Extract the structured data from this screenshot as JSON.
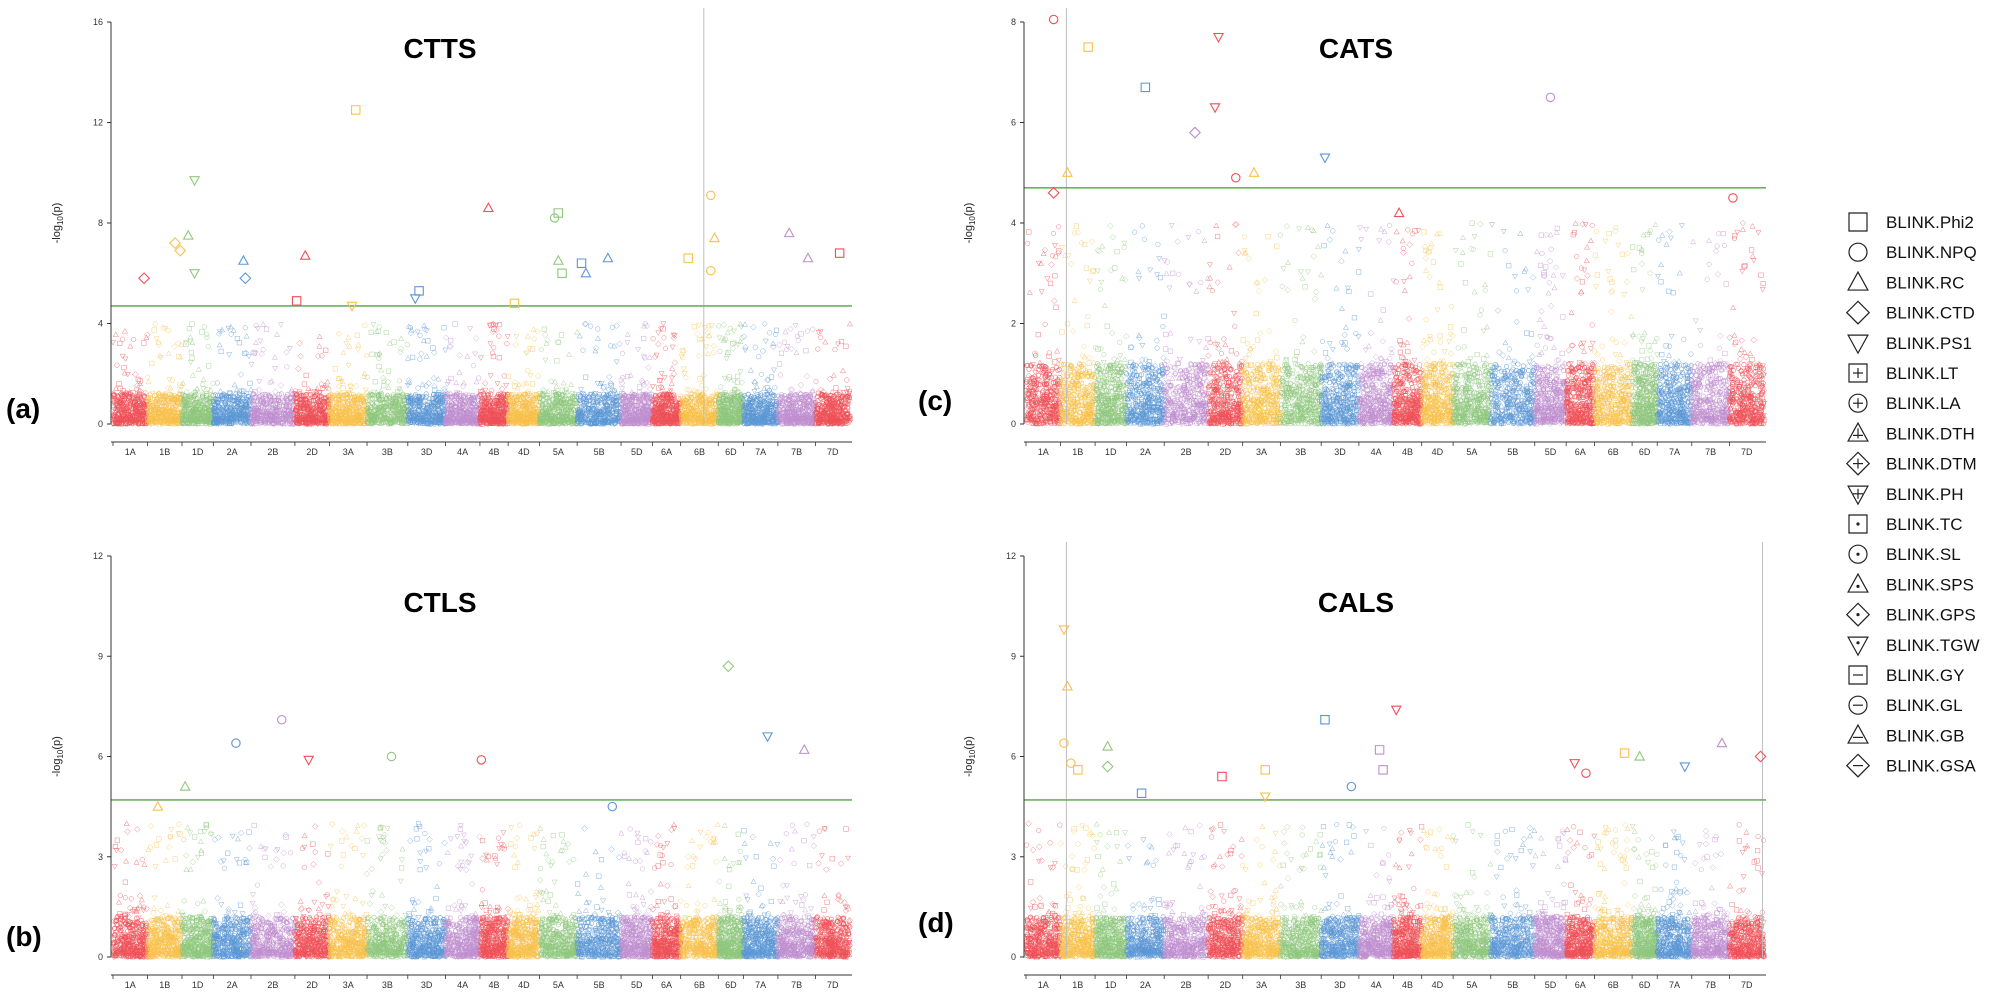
{
  "chart_data": [
    {
      "type": "scatter",
      "panel_label": "(a)",
      "title": "CTTS",
      "ylabel_prefix": "-log",
      "ylabel_sub": "10",
      "ylabel_suffix": "(p)",
      "ylim": [
        0,
        16
      ],
      "yticks": [
        0,
        4,
        8,
        12,
        16
      ],
      "threshold": 4.7,
      "chromosomes": [
        "1A",
        "1B",
        "1D",
        "2A",
        "2B",
        "2D",
        "3A",
        "3B",
        "3D",
        "4A",
        "4B",
        "4D",
        "5A",
        "5B",
        "5D",
        "6A",
        "6B",
        "6D",
        "7A",
        "7B",
        "7D"
      ],
      "vline_at": 16.8,
      "points": [
        {
          "chr": 2,
          "pos": 0.4,
          "y": 9.7,
          "shape": "tri_down"
        },
        {
          "chr": 2,
          "pos": 0.2,
          "y": 7.5,
          "shape": "triangle"
        },
        {
          "chr": 2,
          "pos": 0.4,
          "y": 6.0,
          "shape": "tri_down"
        },
        {
          "chr": 1,
          "pos": 0.8,
          "y": 7.2,
          "shape": "diamond"
        },
        {
          "chr": 1,
          "pos": 0.95,
          "y": 6.9,
          "shape": "diamond"
        },
        {
          "chr": 0,
          "pos": 0.9,
          "y": 5.8,
          "shape": "diamond"
        },
        {
          "chr": 3,
          "pos": 0.8,
          "y": 6.5,
          "shape": "triangle"
        },
        {
          "chr": 3,
          "pos": 0.85,
          "y": 5.8,
          "shape": "diamond"
        },
        {
          "chr": 5,
          "pos": 0.3,
          "y": 6.7,
          "shape": "triangle"
        },
        {
          "chr": 5,
          "pos": 0.05,
          "y": 4.9,
          "shape": "square"
        },
        {
          "chr": 6,
          "pos": 0.7,
          "y": 12.5,
          "shape": "square"
        },
        {
          "chr": 6,
          "pos": 0.6,
          "y": 4.7,
          "shape": "tri_down"
        },
        {
          "chr": 8,
          "pos": 0.2,
          "y": 5.0,
          "shape": "tri_down"
        },
        {
          "chr": 8,
          "pos": 0.3,
          "y": 5.3,
          "shape": "square"
        },
        {
          "chr": 10,
          "pos": 0.3,
          "y": 8.6,
          "shape": "triangle"
        },
        {
          "chr": 10,
          "pos": 0.3,
          "y": 4.8,
          "shape": "plus_tri"
        },
        {
          "chr": 11,
          "pos": 0.2,
          "y": 4.8,
          "shape": "square"
        },
        {
          "chr": 12,
          "pos": 0.5,
          "y": 8.4,
          "shape": "square"
        },
        {
          "chr": 12,
          "pos": 0.4,
          "y": 8.2,
          "shape": "circle"
        },
        {
          "chr": 12,
          "pos": 0.5,
          "y": 6.5,
          "shape": "triangle"
        },
        {
          "chr": 12,
          "pos": 0.6,
          "y": 6.0,
          "shape": "square"
        },
        {
          "chr": 13,
          "pos": 0.1,
          "y": 6.4,
          "shape": "square"
        },
        {
          "chr": 13,
          "pos": 0.2,
          "y": 6.0,
          "shape": "triangle"
        },
        {
          "chr": 13,
          "pos": 0.7,
          "y": 6.6,
          "shape": "triangle"
        },
        {
          "chr": 16,
          "pos": 0.2,
          "y": 6.6,
          "shape": "square"
        },
        {
          "chr": 16,
          "pos": 0.8,
          "y": 9.1,
          "shape": "circle"
        },
        {
          "chr": 16,
          "pos": 0.9,
          "y": 7.4,
          "shape": "triangle"
        },
        {
          "chr": 16,
          "pos": 0.8,
          "y": 6.1,
          "shape": "circle"
        },
        {
          "chr": 19,
          "pos": 0.3,
          "y": 7.6,
          "shape": "triangle"
        },
        {
          "chr": 19,
          "pos": 0.8,
          "y": 6.6,
          "shape": "triangle"
        },
        {
          "chr": 20,
          "pos": 0.7,
          "y": 6.8,
          "shape": "square"
        }
      ]
    },
    {
      "type": "scatter",
      "panel_label": "(c)",
      "title": "CATS",
      "ylabel_prefix": "-log",
      "ylabel_sub": "10",
      "ylabel_suffix": "(p)",
      "ylim": [
        0,
        8
      ],
      "yticks": [
        0,
        2,
        4,
        6,
        8
      ],
      "threshold": 4.7,
      "chromosomes": [
        "1A",
        "1B",
        "1D",
        "2A",
        "2B",
        "2D",
        "3A",
        "3B",
        "3D",
        "4A",
        "4B",
        "4D",
        "5A",
        "5B",
        "5D",
        "6A",
        "6B",
        "6D",
        "7A",
        "7B",
        "7D"
      ],
      "vline_at": 1.2,
      "points": [
        {
          "chr": 0,
          "pos": 0.8,
          "y": 4.6,
          "shape": "diamond"
        },
        {
          "chr": 1,
          "pos": 0.2,
          "y": 5.0,
          "shape": "triangle"
        },
        {
          "chr": 1,
          "pos": 0.8,
          "y": 7.5,
          "shape": "square"
        },
        {
          "chr": 0,
          "pos": 0.8,
          "y": 8.05,
          "shape": "circle"
        },
        {
          "chr": 3,
          "pos": 0.5,
          "y": 6.7,
          "shape": "square"
        },
        {
          "chr": 4,
          "pos": 0.7,
          "y": 5.8,
          "shape": "diamond"
        },
        {
          "chr": 5,
          "pos": 0.3,
          "y": 7.7,
          "shape": "tri_down"
        },
        {
          "chr": 5,
          "pos": 0.2,
          "y": 6.3,
          "shape": "tri_down"
        },
        {
          "chr": 5,
          "pos": 0.8,
          "y": 4.9,
          "shape": "circle"
        },
        {
          "chr": 6,
          "pos": 0.3,
          "y": 5.0,
          "shape": "triangle"
        },
        {
          "chr": 8,
          "pos": 0.1,
          "y": 5.3,
          "shape": "tri_down"
        },
        {
          "chr": 10,
          "pos": 0.2,
          "y": 4.2,
          "shape": "triangle"
        },
        {
          "chr": 14,
          "pos": 0.5,
          "y": 6.5,
          "shape": "circle"
        },
        {
          "chr": 20,
          "pos": 0.1,
          "y": 4.5,
          "shape": "circle"
        }
      ]
    },
    {
      "type": "scatter",
      "panel_label": "(b)",
      "title": "CTLS",
      "ylabel_prefix": "-log",
      "ylabel_sub": "10",
      "ylabel_suffix": "(p)",
      "ylim": [
        0,
        12
      ],
      "yticks": [
        0,
        3,
        6,
        9,
        12
      ],
      "threshold": 4.7,
      "chromosomes": [
        "1A",
        "1B",
        "1D",
        "2A",
        "2B",
        "2D",
        "3A",
        "3B",
        "3D",
        "4A",
        "4B",
        "4D",
        "5A",
        "5B",
        "5D",
        "6A",
        "6B",
        "6D",
        "7A",
        "7B",
        "7D"
      ],
      "vline_at": null,
      "points": [
        {
          "chr": 1,
          "pos": 0.3,
          "y": 4.5,
          "shape": "triangle"
        },
        {
          "chr": 2,
          "pos": 0.1,
          "y": 5.1,
          "shape": "triangle"
        },
        {
          "chr": 3,
          "pos": 0.6,
          "y": 6.4,
          "shape": "circle"
        },
        {
          "chr": 4,
          "pos": 0.7,
          "y": 7.1,
          "shape": "circle"
        },
        {
          "chr": 5,
          "pos": 0.4,
          "y": 5.9,
          "shape": "tri_down"
        },
        {
          "chr": 7,
          "pos": 0.6,
          "y": 6.0,
          "shape": "circle"
        },
        {
          "chr": 10,
          "pos": 0.05,
          "y": 5.9,
          "shape": "circle"
        },
        {
          "chr": 13,
          "pos": 0.8,
          "y": 4.5,
          "shape": "circle"
        },
        {
          "chr": 17,
          "pos": 0.4,
          "y": 8.7,
          "shape": "diamond"
        },
        {
          "chr": 18,
          "pos": 0.7,
          "y": 6.6,
          "shape": "tri_down"
        },
        {
          "chr": 19,
          "pos": 0.7,
          "y": 6.2,
          "shape": "triangle"
        }
      ]
    },
    {
      "type": "scatter",
      "panel_label": "(d)",
      "title": "CALS",
      "ylabel_prefix": "-log",
      "ylabel_sub": "10",
      "ylabel_suffix": "(p)",
      "ylim": [
        0,
        12
      ],
      "yticks": [
        0,
        3,
        6,
        9,
        12
      ],
      "threshold": 4.7,
      "chromosomes": [
        "1A",
        "1B",
        "1D",
        "2A",
        "2B",
        "2D",
        "3A",
        "3B",
        "3D",
        "4A",
        "4B",
        "4D",
        "5A",
        "5B",
        "5D",
        "6A",
        "6B",
        "6D",
        "7A",
        "7B",
        "7D"
      ],
      "vline_at": 1.2,
      "vline2_at": 20.9,
      "points": [
        {
          "chr": 1,
          "pos": 0.1,
          "y": 9.8,
          "shape": "tri_down"
        },
        {
          "chr": 1,
          "pos": 0.2,
          "y": 8.1,
          "shape": "triangle"
        },
        {
          "chr": 1,
          "pos": 0.1,
          "y": 6.4,
          "shape": "circle"
        },
        {
          "chr": 1,
          "pos": 0.5,
          "y": 5.6,
          "shape": "square"
        },
        {
          "chr": 1,
          "pos": 0.3,
          "y": 5.8,
          "shape": "circle"
        },
        {
          "chr": 2,
          "pos": 0.4,
          "y": 6.3,
          "shape": "triangle"
        },
        {
          "chr": 2,
          "pos": 0.4,
          "y": 5.7,
          "shape": "diamond"
        },
        {
          "chr": 3,
          "pos": 0.4,
          "y": 4.9,
          "shape": "square"
        },
        {
          "chr": 5,
          "pos": 0.4,
          "y": 5.4,
          "shape": "square"
        },
        {
          "chr": 6,
          "pos": 0.6,
          "y": 5.6,
          "shape": "square"
        },
        {
          "chr": 6,
          "pos": 0.6,
          "y": 4.8,
          "shape": "tri_down"
        },
        {
          "chr": 8,
          "pos": 0.1,
          "y": 7.1,
          "shape": "square"
        },
        {
          "chr": 8,
          "pos": 0.8,
          "y": 5.1,
          "shape": "circle"
        },
        {
          "chr": 9,
          "pos": 0.6,
          "y": 6.2,
          "shape": "square"
        },
        {
          "chr": 9,
          "pos": 0.7,
          "y": 5.6,
          "shape": "square"
        },
        {
          "chr": 10,
          "pos": 0.1,
          "y": 7.4,
          "shape": "tri_down"
        },
        {
          "chr": 15,
          "pos": 0.3,
          "y": 5.8,
          "shape": "tri_down"
        },
        {
          "chr": 15,
          "pos": 0.7,
          "y": 5.5,
          "shape": "circle"
        },
        {
          "chr": 16,
          "pos": 0.8,
          "y": 6.1,
          "shape": "square"
        },
        {
          "chr": 17,
          "pos": 0.3,
          "y": 6.0,
          "shape": "triangle"
        },
        {
          "chr": 18,
          "pos": 0.8,
          "y": 5.7,
          "shape": "tri_down"
        },
        {
          "chr": 19,
          "pos": 0.8,
          "y": 6.4,
          "shape": "triangle"
        },
        {
          "chr": 20,
          "pos": 0.9,
          "y": 6.0,
          "shape": "diamond"
        }
      ]
    }
  ],
  "chromosome_colors": [
    "#ef5057",
    "#f8c14b",
    "#8fc77d",
    "#5b97d5",
    "#bf8ecf"
  ],
  "threshold_color": "#6fb163",
  "legend": {
    "items": [
      {
        "label": "BLINK.Phi2",
        "shape": "square",
        "mark": ""
      },
      {
        "label": "BLINK.NPQ",
        "shape": "circle",
        "mark": ""
      },
      {
        "label": "BLINK.RC",
        "shape": "triangle",
        "mark": ""
      },
      {
        "label": "BLINK.CTD",
        "shape": "diamond",
        "mark": ""
      },
      {
        "label": "BLINK.PS1",
        "shape": "tri_down",
        "mark": ""
      },
      {
        "label": "BLINK.LT",
        "shape": "square",
        "mark": "plus"
      },
      {
        "label": "BLINK.LA",
        "shape": "circle",
        "mark": "plus"
      },
      {
        "label": "BLINK.DTH",
        "shape": "triangle",
        "mark": "plus"
      },
      {
        "label": "BLINK.DTM",
        "shape": "diamond",
        "mark": "plus"
      },
      {
        "label": "BLINK.PH",
        "shape": "tri_down",
        "mark": "plus"
      },
      {
        "label": "BLINK.TC",
        "shape": "square",
        "mark": "star"
      },
      {
        "label": "BLINK.SL",
        "shape": "circle",
        "mark": "star"
      },
      {
        "label": "BLINK.SPS",
        "shape": "triangle",
        "mark": "star"
      },
      {
        "label": "BLINK.GPS",
        "shape": "diamond",
        "mark": "star"
      },
      {
        "label": "BLINK.TGW",
        "shape": "tri_down",
        "mark": "star"
      },
      {
        "label": "BLINK.GY",
        "shape": "square",
        "mark": "minus"
      },
      {
        "label": "BLINK.GL",
        "shape": "circle",
        "mark": "minus"
      },
      {
        "label": "BLINK.GB",
        "shape": "triangle",
        "mark": "minus"
      },
      {
        "label": "BLINK.GSA",
        "shape": "diamond",
        "mark": "minus"
      }
    ]
  }
}
